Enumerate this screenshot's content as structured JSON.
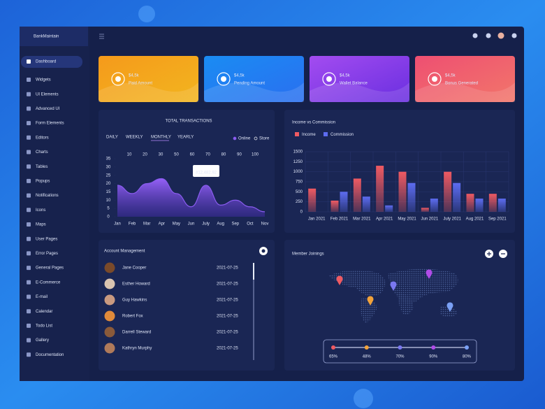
{
  "brand": "BankMaintain",
  "sidebar": [
    "Dashboard",
    "Widgets",
    "UI Elements",
    "Advanced UI",
    "Form Elements",
    "Editors",
    "Charts",
    "Tables",
    "Popups",
    "Notifications",
    "Icons",
    "Maps",
    "User Pages",
    "Error Pages",
    "General Pages",
    "E-Commerce",
    "E-mail",
    "Calendar",
    "Todo List",
    "Gallery",
    "Documentation"
  ],
  "cards": [
    {
      "amount": "$4,5k",
      "label": "Paid Amount"
    },
    {
      "amount": "$4,5k",
      "label": "Pending Amount"
    },
    {
      "amount": "$4,5k",
      "label": "Wallet Balance"
    },
    {
      "amount": "$4,5k",
      "label": "Bonus Generated"
    }
  ],
  "chart_data": [
    {
      "type": "area",
      "title": "TOTAL TRANSACTIONS",
      "tabs": [
        "DAILY",
        "WEEKLY",
        "MONTHLY",
        "YEARLY"
      ],
      "active_tab": 2,
      "legend": [
        "Online",
        "Store"
      ],
      "top_labels": [
        10,
        20,
        30,
        50,
        60,
        70,
        80,
        90,
        100
      ],
      "categories": [
        "Jan",
        "Feb",
        "Mar",
        "Apr",
        "May",
        "Jun",
        "July",
        "Aug",
        "Sep",
        "Oct",
        "Nov"
      ],
      "values": [
        19,
        14,
        20,
        23,
        14,
        6,
        19,
        7,
        10,
        6,
        3
      ],
      "color": "#8a5cf0",
      "ylim": [
        0,
        35
      ],
      "yticks": [
        0,
        5,
        10,
        15,
        20,
        25,
        30,
        35
      ],
      "tooltip": "#12,482.92"
    },
    {
      "type": "bar",
      "title": "Income vs Commission",
      "categories": [
        "Jan 2021",
        "Feb 2021",
        "Mar 2021",
        "Apr 2021",
        "May 2021",
        "Jun 2021",
        "July 2021",
        "Aug 2021",
        "Sep 2021"
      ],
      "series": [
        {
          "name": "Income",
          "color": "#ef5a62",
          "values": [
            580,
            280,
            830,
            1150,
            1000,
            100,
            1000,
            450,
            450
          ]
        },
        {
          "name": "Commission",
          "color": "#5d6cf0",
          "values": [
            0,
            500,
            380,
            160,
            720,
            330,
            720,
            330,
            330
          ]
        }
      ],
      "ylim": [
        0,
        1500
      ],
      "yticks": [
        0,
        250,
        500,
        750,
        1000,
        1250,
        1500
      ],
      "grid": true
    }
  ],
  "accounts": {
    "title": "Account Management",
    "rows": [
      {
        "name": "Jane Cooper",
        "date": "2021-07-25"
      },
      {
        "name": "Esther Howard",
        "date": "2021-07-25"
      },
      {
        "name": "Guy Hawkins",
        "date": "2021-07-25"
      },
      {
        "name": "Robert Fox",
        "date": "2021-07-25"
      },
      {
        "name": "Darrell Steward",
        "date": "2021-07-25"
      },
      {
        "name": "Kathryn Murphy",
        "date": "2021-07-25"
      }
    ]
  },
  "members": {
    "title": "Member Joinings",
    "stops": [
      "65%",
      "48%",
      "70%",
      "90%",
      "80%"
    ]
  }
}
